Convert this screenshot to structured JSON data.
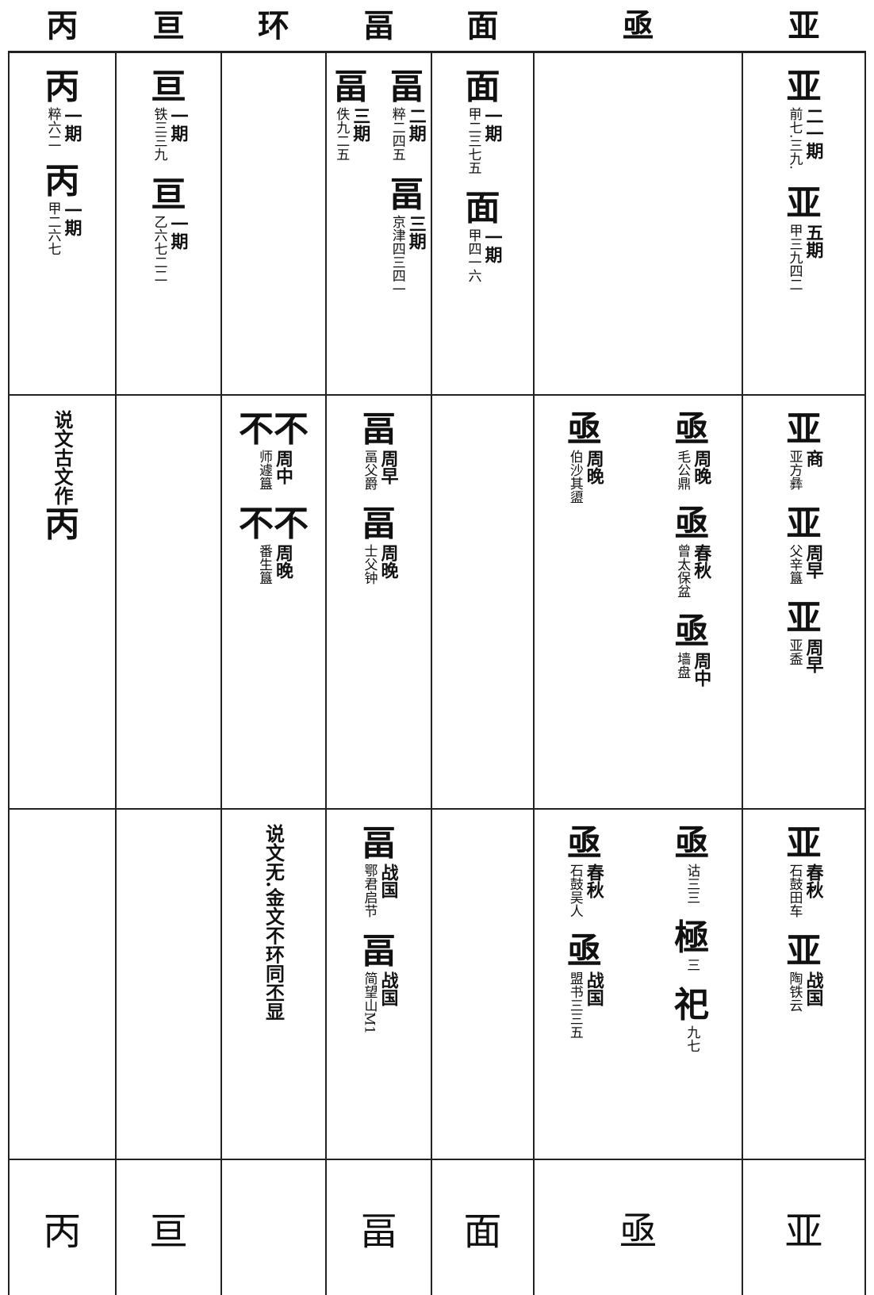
{
  "columns": [
    {
      "header": "丙",
      "rows": [
        [
          {
            "glyph": "丙",
            "period": "一期",
            "source": "粹六二"
          },
          {
            "glyph": "丙",
            "period": "一期",
            "source": "甲二六七"
          }
        ],
        [
          {
            "note": "说文古文作",
            "glyph": "丙"
          }
        ],
        []
      ],
      "bottom": "丙"
    },
    {
      "header": "亘",
      "rows": [
        [
          {
            "glyph": "亘",
            "period": "一期",
            "source": "铁三三九"
          },
          {
            "glyph": "亘",
            "period": "一期",
            "source": "乙六七二二"
          }
        ],
        [],
        []
      ],
      "bottom": "亘"
    },
    {
      "header": "环",
      "rows": [
        [],
        [
          {
            "glyph": "不不",
            "period": "周中",
            "source": "师遽簋"
          },
          {
            "glyph": "不不",
            "period": "周晚",
            "source": "番生簋"
          }
        ],
        [
          {
            "note": "说文无.金文不环同丕显"
          }
        ]
      ]
    },
    {
      "header": "畐",
      "rows": [
        [
          {
            "glyph": "畐",
            "period": "二期",
            "source": "粹二四五"
          },
          {
            "glyph": "畐",
            "period": "三期",
            "source": "京津四三四一"
          },
          {
            "glyph": "畐",
            "period": "三期",
            "source": "佚九二五"
          }
        ],
        [
          {
            "glyph": "畐",
            "period": "周早",
            "source": "畐父爵"
          },
          {
            "glyph": "畐",
            "period": "周晚",
            "source": "士父钟"
          }
        ],
        [
          {
            "glyph": "畐",
            "period": "战国",
            "source": "鄂君启节"
          },
          {
            "glyph": "畐",
            "period": "战国",
            "source": "简望山M1"
          }
        ]
      ],
      "bottom": "畐"
    },
    {
      "header": "面",
      "rows": [
        [
          {
            "glyph": "面",
            "period": "一期",
            "source": "甲二三七五"
          },
          {
            "glyph": "面",
            "period": "一期",
            "source": "甲四一六"
          }
        ],
        [],
        []
      ],
      "bottom": "面"
    },
    {
      "header": "亟",
      "rows": [
        [],
        [
          {
            "glyph": "亟",
            "period": "周晚",
            "source": "毛公鼎"
          },
          {
            "glyph": "亟",
            "period": "春秋",
            "source": "曾太保盆"
          },
          {
            "glyph": "亟",
            "period": "周中",
            "source": "墙盘"
          },
          {
            "glyph": "亟",
            "period": "周晚",
            "source": "伯沙其盨"
          }
        ],
        [
          {
            "glyph": "亟",
            "source": "诂三三"
          },
          {
            "glyph": "極",
            "source": "三"
          },
          {
            "glyph": "祀",
            "source": "九七"
          },
          {
            "glyph": "亟",
            "period": "春秋",
            "source": "石鼓吴人"
          },
          {
            "glyph": "亟",
            "period": "战国",
            "source": "盟书三三五"
          }
        ]
      ],
      "bottom": "亟"
    },
    {
      "header": "亚",
      "rows": [
        [
          {
            "glyph": "亚",
            "period": "二一期",
            "source": "前七.三九."
          },
          {
            "glyph": "亚",
            "period": "五期",
            "source": "甲三九四二"
          }
        ],
        [
          {
            "glyph": "亚",
            "period": "商",
            "source": "亚方彝"
          },
          {
            "glyph": "亚",
            "period": "周早",
            "source": "父辛簋"
          },
          {
            "glyph": "亚",
            "period": "周早",
            "source": "亚盉"
          }
        ],
        [
          {
            "glyph": "亚",
            "period": "春秋",
            "source": "石鼓田车"
          },
          {
            "glyph": "亚",
            "period": "战国",
            "source": "陶铁云"
          }
        ]
      ],
      "bottom": "亚"
    }
  ]
}
